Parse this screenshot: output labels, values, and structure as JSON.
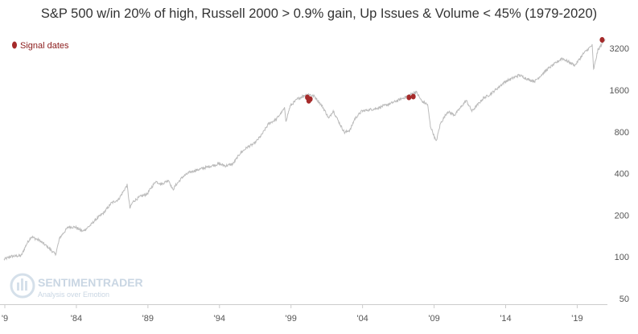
{
  "chart_data": {
    "type": "line",
    "title": "S&P 500 w/in 20% of high, Russell 2000 > 0.9% gain, Up Issues & Volume < 45% (1979-2020)",
    "y_scale": "log",
    "ylim": [
      50,
      4200
    ],
    "xlim": [
      1979.0,
      2021.0
    ],
    "y_ticks": [
      {
        "value": 50,
        "label": "50"
      },
      {
        "value": 100,
        "label": "100"
      },
      {
        "value": 200,
        "label": "200"
      },
      {
        "value": 400,
        "label": "400"
      },
      {
        "value": 800,
        "label": "800"
      },
      {
        "value": 1600,
        "label": "1600"
      },
      {
        "value": 3200,
        "label": "3200"
      }
    ],
    "x_ticks": [
      {
        "value": 1979,
        "label": "'9"
      },
      {
        "value": 1984,
        "label": "'84"
      },
      {
        "value": 1989,
        "label": "'89"
      },
      {
        "value": 1994,
        "label": "'94"
      },
      {
        "value": 1999,
        "label": "'99"
      },
      {
        "value": 2004,
        "label": "'04"
      },
      {
        "value": 2009,
        "label": "'09"
      },
      {
        "value": 2014,
        "label": "'14"
      },
      {
        "value": 2019,
        "label": "'19"
      }
    ],
    "grid": false,
    "legend_position": "top-left",
    "series": [
      {
        "type": "line",
        "color": "#bbbbbb",
        "points": [
          [
            1979.0,
            96
          ],
          [
            1979.5,
            101
          ],
          [
            1980.2,
            102
          ],
          [
            1980.6,
            125
          ],
          [
            1980.9,
            140
          ],
          [
            1981.5,
            131
          ],
          [
            1982.1,
            117
          ],
          [
            1982.6,
            104
          ],
          [
            1982.9,
            138
          ],
          [
            1983.5,
            165
          ],
          [
            1984.0,
            164
          ],
          [
            1984.5,
            153
          ],
          [
            1985.0,
            168
          ],
          [
            1985.5,
            190
          ],
          [
            1986.0,
            210
          ],
          [
            1986.5,
            245
          ],
          [
            1987.0,
            260
          ],
          [
            1987.6,
            330
          ],
          [
            1987.8,
            225
          ],
          [
            1988.0,
            250
          ],
          [
            1988.5,
            272
          ],
          [
            1989.0,
            285
          ],
          [
            1989.6,
            352
          ],
          [
            1990.0,
            335
          ],
          [
            1990.5,
            360
          ],
          [
            1990.8,
            305
          ],
          [
            1991.0,
            330
          ],
          [
            1991.5,
            380
          ],
          [
            1992.0,
            410
          ],
          [
            1993.0,
            440
          ],
          [
            1994.0,
            470
          ],
          [
            1994.5,
            455
          ],
          [
            1995.0,
            470
          ],
          [
            1995.5,
            560
          ],
          [
            1996.0,
            620
          ],
          [
            1996.5,
            660
          ],
          [
            1997.0,
            760
          ],
          [
            1997.5,
            920
          ],
          [
            1998.0,
            980
          ],
          [
            1998.6,
            1180
          ],
          [
            1998.7,
            960
          ],
          [
            1999.0,
            1230
          ],
          [
            1999.5,
            1380
          ],
          [
            2000.0,
            1470
          ],
          [
            2000.3,
            1500
          ],
          [
            2000.7,
            1440
          ],
          [
            2001.0,
            1320
          ],
          [
            2001.3,
            1200
          ],
          [
            2001.7,
            1000
          ],
          [
            2002.0,
            1140
          ],
          [
            2002.5,
            900
          ],
          [
            2002.8,
            790
          ],
          [
            2003.2,
            830
          ],
          [
            2003.5,
            990
          ],
          [
            2004.0,
            1130
          ],
          [
            2005.0,
            1180
          ],
          [
            2006.0,
            1280
          ],
          [
            2007.0,
            1420
          ],
          [
            2007.8,
            1560
          ],
          [
            2008.2,
            1330
          ],
          [
            2008.6,
            1260
          ],
          [
            2008.8,
            880
          ],
          [
            2009.2,
            680
          ],
          [
            2009.5,
            920
          ],
          [
            2010.0,
            1120
          ],
          [
            2010.5,
            1060
          ],
          [
            2011.3,
            1350
          ],
          [
            2011.7,
            1130
          ],
          [
            2012.5,
            1400
          ],
          [
            2013.0,
            1500
          ],
          [
            2014.0,
            1840
          ],
          [
            2015.0,
            2060
          ],
          [
            2015.7,
            1900
          ],
          [
            2016.1,
            1860
          ],
          [
            2017.0,
            2280
          ],
          [
            2018.0,
            2720
          ],
          [
            2018.9,
            2420
          ],
          [
            2019.5,
            2950
          ],
          [
            2020.1,
            3380
          ],
          [
            2020.2,
            2250
          ],
          [
            2020.5,
            3100
          ],
          [
            2021.0,
            3750
          ]
        ]
      },
      {
        "name": "Signal dates",
        "type": "scatter",
        "color": "#a52a2a",
        "points": [
          [
            2000.2,
            1420
          ],
          [
            2000.4,
            1380
          ],
          [
            2000.3,
            1340
          ],
          [
            2007.3,
            1420
          ],
          [
            2007.6,
            1440
          ],
          [
            2020.8,
            3700
          ]
        ]
      }
    ],
    "watermark": {
      "name": "SENTIMENTRADER",
      "tagline": "Analysis over Emotion"
    }
  }
}
